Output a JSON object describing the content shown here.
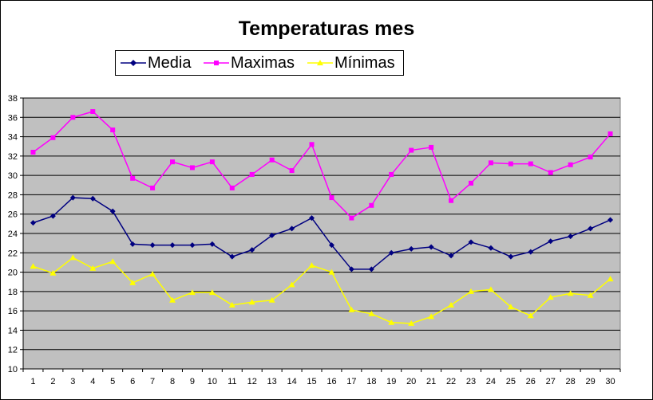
{
  "chart_data": {
    "type": "line",
    "title": "Temperaturas mes",
    "xlabel": "",
    "ylabel": "",
    "categories": [
      "1",
      "2",
      "3",
      "4",
      "5",
      "6",
      "7",
      "8",
      "9",
      "10",
      "11",
      "12",
      "13",
      "14",
      "15",
      "16",
      "17",
      "18",
      "19",
      "20",
      "21",
      "22",
      "23",
      "24",
      "25",
      "26",
      "27",
      "28",
      "29",
      "30"
    ],
    "ylim": [
      10,
      38
    ],
    "yticks": [
      "10",
      "12",
      "14",
      "16",
      "18",
      "20",
      "22",
      "24",
      "26",
      "28",
      "30",
      "32",
      "34",
      "36",
      "38"
    ],
    "grid": true,
    "legend_position": "top",
    "plot_background": "#c0c0c0",
    "series": [
      {
        "name": "Media",
        "color": "#000080",
        "marker": "diamond",
        "values": [
          25.1,
          25.8,
          27.7,
          27.6,
          26.3,
          22.9,
          22.8,
          22.8,
          22.8,
          22.9,
          21.6,
          22.3,
          23.8,
          24.5,
          25.6,
          22.8,
          20.3,
          20.3,
          22.0,
          22.4,
          22.6,
          21.7,
          23.1,
          22.5,
          21.6,
          22.1,
          23.2,
          23.7,
          24.5,
          25.4
        ]
      },
      {
        "name": "Maximas",
        "color": "#ff00ff",
        "marker": "square",
        "values": [
          32.4,
          33.9,
          36.0,
          36.6,
          34.7,
          29.7,
          28.7,
          31.4,
          30.8,
          31.4,
          28.7,
          30.1,
          31.6,
          30.5,
          33.2,
          27.7,
          25.6,
          26.9,
          30.1,
          32.6,
          32.9,
          27.4,
          29.2,
          31.3,
          31.2,
          31.2,
          30.3,
          31.1,
          31.9,
          34.3
        ]
      },
      {
        "name": "Mínimas",
        "color": "#ffff00",
        "marker": "triangle",
        "values": [
          20.6,
          19.9,
          21.5,
          20.4,
          21.1,
          18.9,
          19.8,
          17.1,
          17.9,
          17.9,
          16.6,
          16.9,
          17.1,
          18.7,
          20.7,
          20.0,
          16.1,
          15.7,
          14.8,
          14.7,
          15.4,
          16.6,
          18.0,
          18.2,
          16.4,
          15.5,
          17.4,
          17.8,
          17.6,
          19.3
        ]
      }
    ]
  }
}
